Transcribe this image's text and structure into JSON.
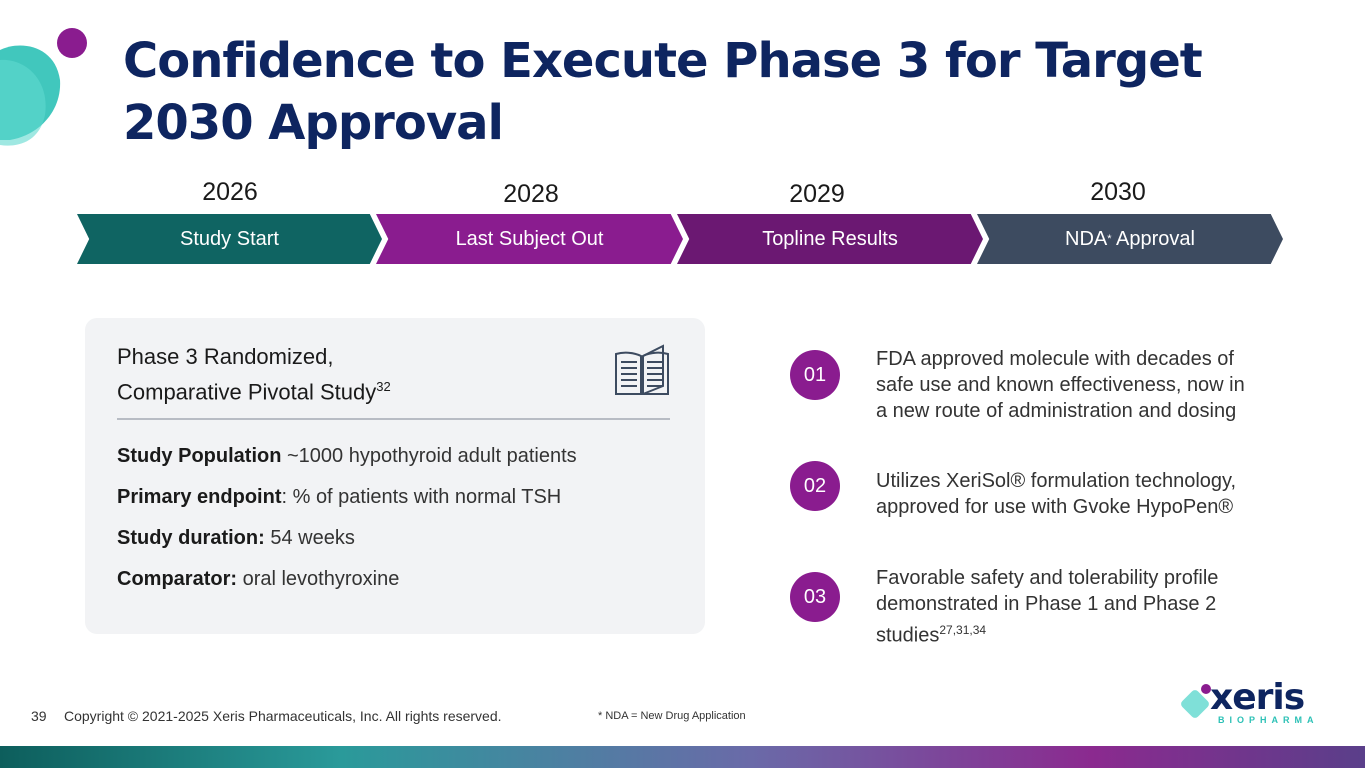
{
  "title": "Confidence to Execute Phase 3 for Target 2030 Approval",
  "timeline": [
    {
      "year": "2026",
      "label": "Study Start",
      "color": "#0f6462"
    },
    {
      "year": "2028",
      "label": "Last Subject Out",
      "color": "#8a1c8f"
    },
    {
      "year": "2029",
      "label": "Topline Results",
      "color": "#6b1872"
    },
    {
      "year": "2030",
      "label": "NDA",
      "sup": "*",
      "label_suffix": " Approval",
      "color": "#3d4b60"
    }
  ],
  "card": {
    "title_line1": "Phase 3 Randomized,",
    "title_line2": "Comparative Pivotal Study",
    "title_sup": "32",
    "rows": [
      {
        "label": "Study Population",
        "value": " ~1000 hypothyroid adult patients"
      },
      {
        "label": "Primary endpoint",
        "value": ": % of patients with normal TSH"
      },
      {
        "label": "Study duration:",
        "value": " 54 weeks"
      },
      {
        "label": "Comparator:",
        "value": " oral levothyroxine"
      }
    ]
  },
  "points": [
    {
      "num": "01",
      "lines": [
        "FDA approved molecule with decades of",
        "safe use and known effectiveness, now in",
        "a new route of administration and dosing"
      ]
    },
    {
      "num": "02",
      "lines": [
        "Utilizes XeriSol® formulation technology,",
        "approved for use with Gvoke HypoPen®"
      ]
    },
    {
      "num": "03",
      "lines": [
        "Favorable safety and tolerability profile",
        "demonstrated in Phase 1 and Phase 2",
        "studies"
      ],
      "sup": "27,31,34"
    }
  ],
  "footer": {
    "page_number": "39",
    "copyright": "Copyright © 2021-2025 Xeris Pharmaceuticals, Inc. All rights reserved.",
    "note": "* NDA = New Drug Application"
  },
  "logo": {
    "name": "xeris",
    "sub": "BIOPHARMA"
  },
  "colors": {
    "title": "#0e2560",
    "accent_purple": "#8a1c8f",
    "accent_teal": "#2cc1b6"
  }
}
